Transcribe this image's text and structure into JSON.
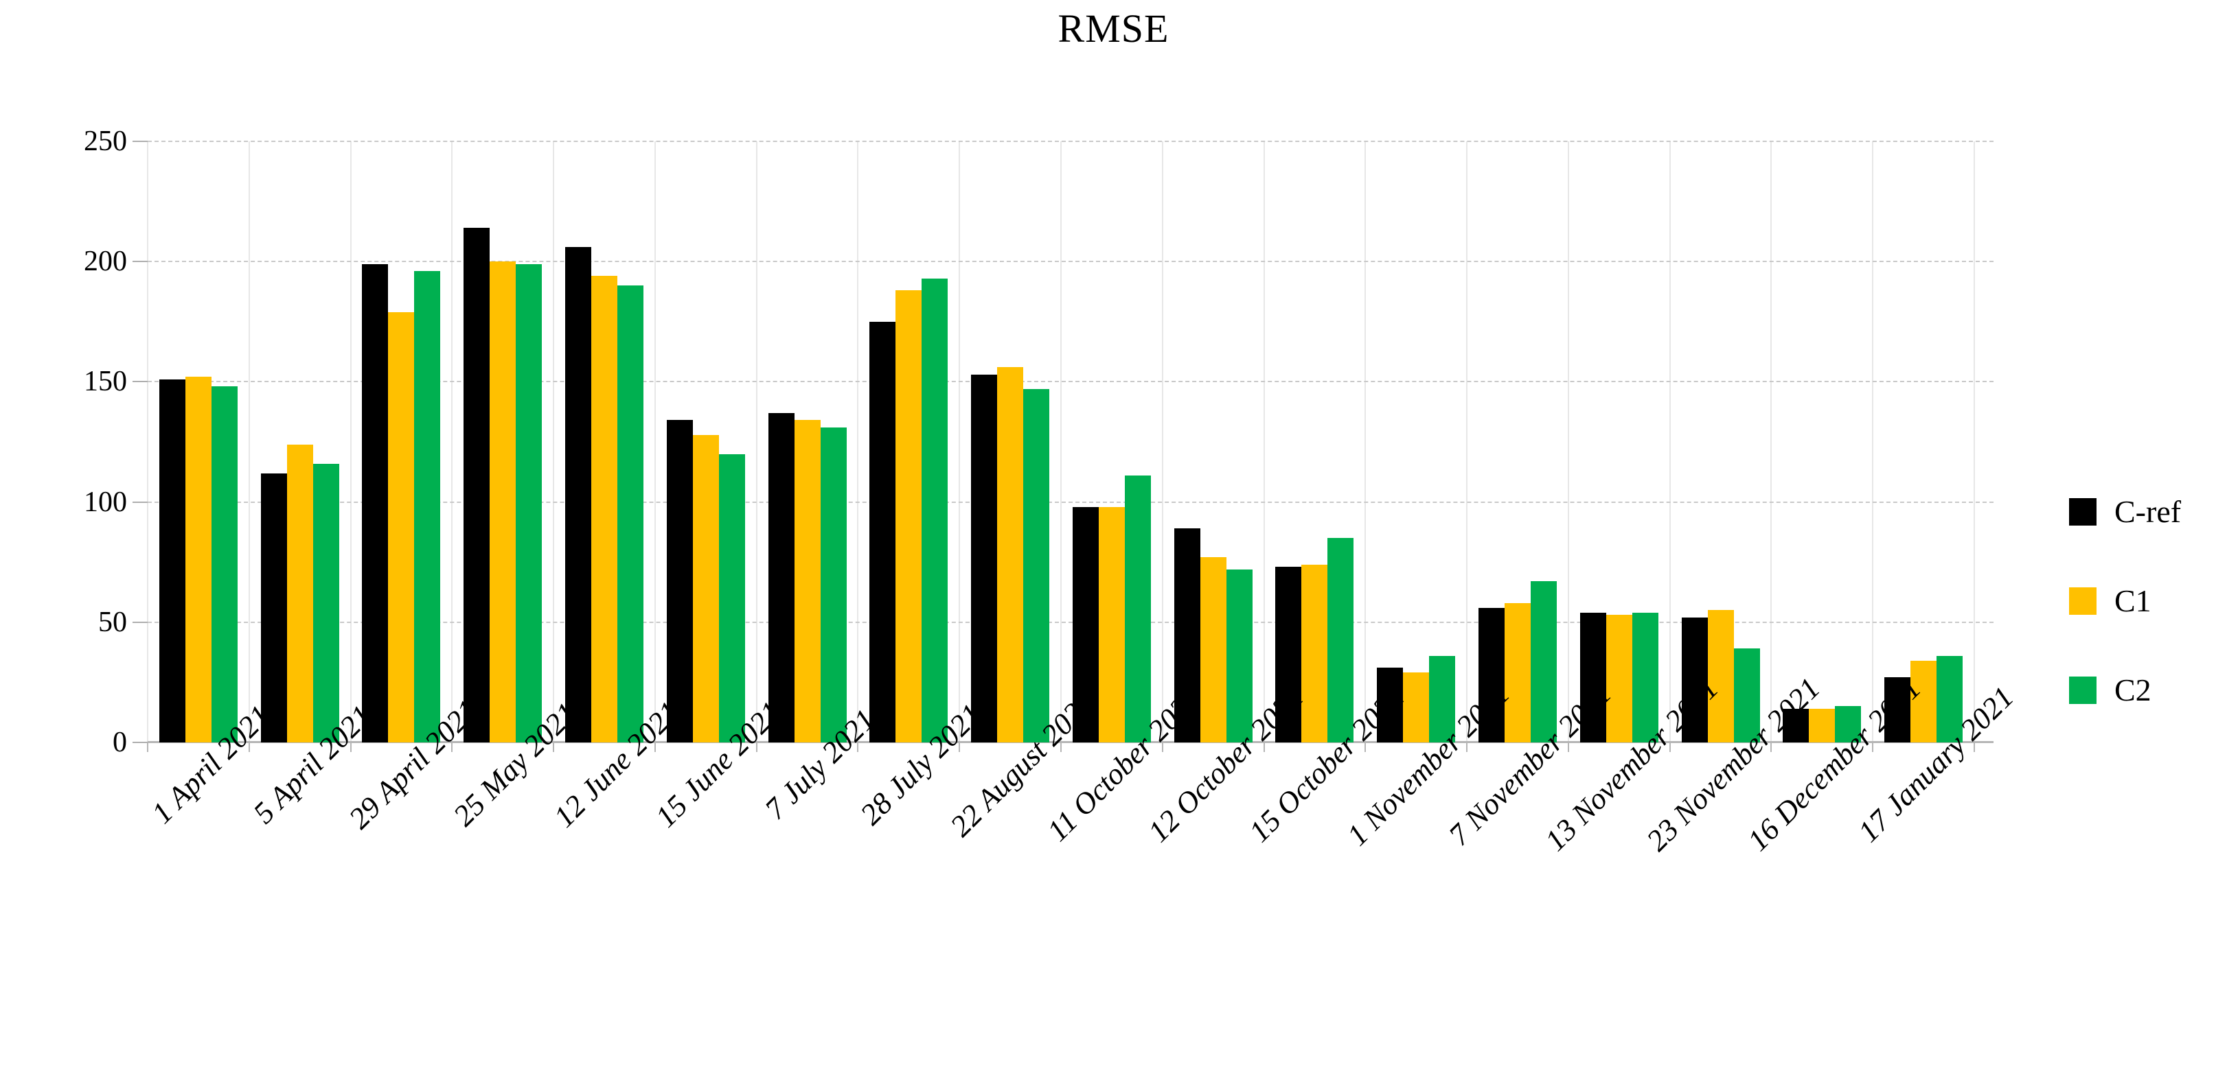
{
  "chart": {
    "title": "RMSE",
    "legend": [
      {
        "name": "C-ref",
        "color": "#000000"
      },
      {
        "name": "C1",
        "color": "#FFC000"
      },
      {
        "name": "C2",
        "color": "#00B050"
      }
    ]
  },
  "chart_data": {
    "type": "bar",
    "title": "RMSE",
    "xlabel": "",
    "ylabel": "",
    "ylim": [
      0,
      250
    ],
    "yticks": [
      0,
      50,
      100,
      150,
      200,
      250
    ],
    "grid": "horizontal dashed gridlines and vertical category separators",
    "legend_position": "right",
    "categories": [
      "1 April 2021",
      "5 April 2021",
      "29 April 2021",
      "25 May 2021",
      "12 June 2021",
      "15 June 2021",
      "7 July 2021",
      "28 July 2021",
      "22 August 2021",
      "11 October 2021",
      "12 October 2021",
      "15 October 2021",
      "1 November 2021",
      "7 November 2021",
      "13 November 2021",
      "23 November 2021",
      "16 December 2021",
      "17 January 2021"
    ],
    "series": [
      {
        "name": "C-ref",
        "color": "#000000",
        "values": [
          151,
          112,
          199,
          214,
          206,
          134,
          137,
          175,
          153,
          98,
          89,
          73,
          31,
          56,
          54,
          52,
          14,
          27
        ]
      },
      {
        "name": "C1",
        "color": "#FFC000",
        "values": [
          152,
          124,
          179,
          200,
          194,
          128,
          134,
          188,
          156,
          98,
          77,
          74,
          29,
          58,
          53,
          55,
          14,
          34
        ]
      },
      {
        "name": "C2",
        "color": "#00B050",
        "values": [
          148,
          116,
          196,
          199,
          190,
          120,
          131,
          193,
          147,
          111,
          72,
          85,
          36,
          67,
          54,
          39,
          15,
          36
        ]
      }
    ]
  }
}
